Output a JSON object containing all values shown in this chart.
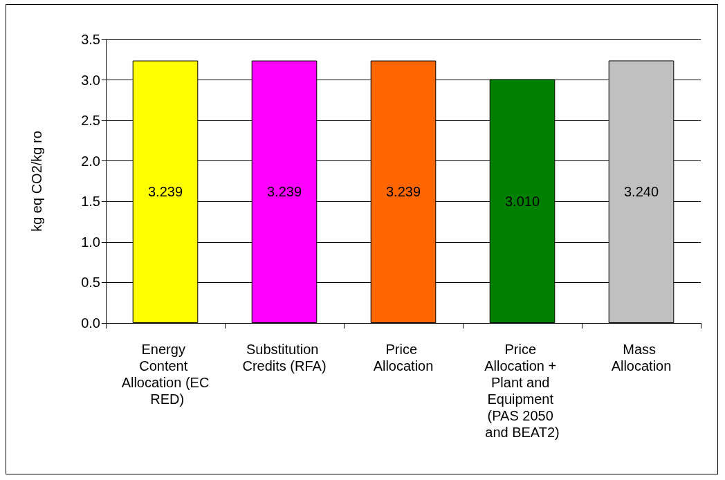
{
  "chart_data": {
    "type": "bar",
    "ylabel": "kg eq CO2/kg ro",
    "categories": [
      "Energy Content Allocation (EC RED)",
      "Substitution Credits (RFA)",
      "Price Allocation",
      "Price Allocation + Plant and Equipment (PAS 2050 and BEAT2)",
      "Mass Allocation"
    ],
    "values": [
      3.239,
      3.239,
      3.239,
      3.01,
      3.24
    ],
    "value_labels": [
      "3.239",
      "3.239",
      "3.239",
      "3.010",
      "3.240"
    ],
    "colors": [
      "#ffff00",
      "#ff00ff",
      "#ff6600",
      "#008000",
      "#c0c0c0"
    ],
    "ylim": [
      0,
      3.5
    ],
    "yticks": [
      {
        "value": 0,
        "label": "0.0"
      },
      {
        "value": 0.5,
        "label": "0.5"
      },
      {
        "value": 1,
        "label": "1.0"
      },
      {
        "value": 1.5,
        "label": "1.5"
      },
      {
        "value": 2,
        "label": "2.0"
      },
      {
        "value": 2.5,
        "label": "2.5"
      },
      {
        "value": 3,
        "label": "3.0"
      },
      {
        "value": 3.5,
        "label": "3.5"
      }
    ],
    "grid": "y"
  }
}
